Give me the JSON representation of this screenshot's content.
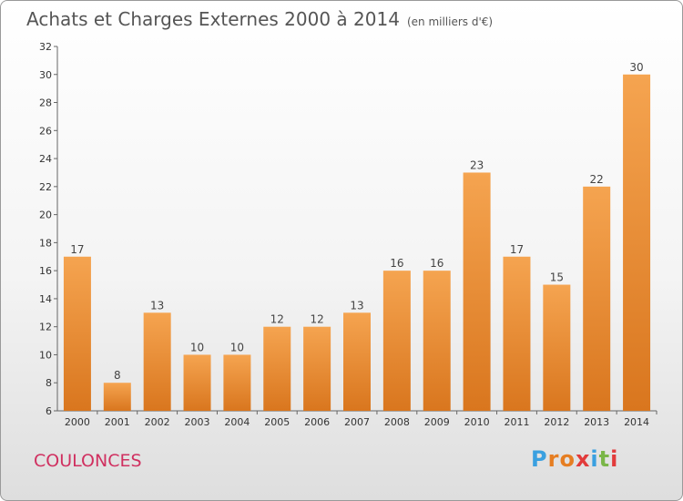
{
  "header": {
    "title": "Achats et Charges Externes 2000 à 2014",
    "unit": "(en milliers d'€)"
  },
  "footer": {
    "commune": "COULONCES",
    "brand": [
      "P",
      "r",
      "o",
      "x",
      "i",
      "t",
      "i"
    ]
  },
  "colors": {
    "bar_top": "#f5a450",
    "bar_bottom": "#d9761e",
    "commune": "#d03060",
    "brand": [
      "#3aa0e0",
      "#e67e22",
      "#e67e22",
      "#e23b3b",
      "#3aa0e0",
      "#7ab648",
      "#e23b3b"
    ]
  },
  "chart_data": {
    "type": "bar",
    "title": "Achats et Charges Externes 2000 à 2014",
    "subtitle": "(en milliers d'€)",
    "categories": [
      "2000",
      "2001",
      "2002",
      "2003",
      "2004",
      "2005",
      "2006",
      "2007",
      "2008",
      "2009",
      "2010",
      "2011",
      "2012",
      "2013",
      "2014"
    ],
    "values": [
      17,
      8,
      13,
      10,
      10,
      12,
      12,
      13,
      16,
      16,
      23,
      17,
      15,
      22,
      30
    ],
    "ylim": [
      6,
      32
    ],
    "yticks": [
      6,
      8,
      10,
      12,
      14,
      16,
      18,
      20,
      22,
      24,
      26,
      28,
      30,
      32
    ],
    "grid": false,
    "legend": "none"
  }
}
